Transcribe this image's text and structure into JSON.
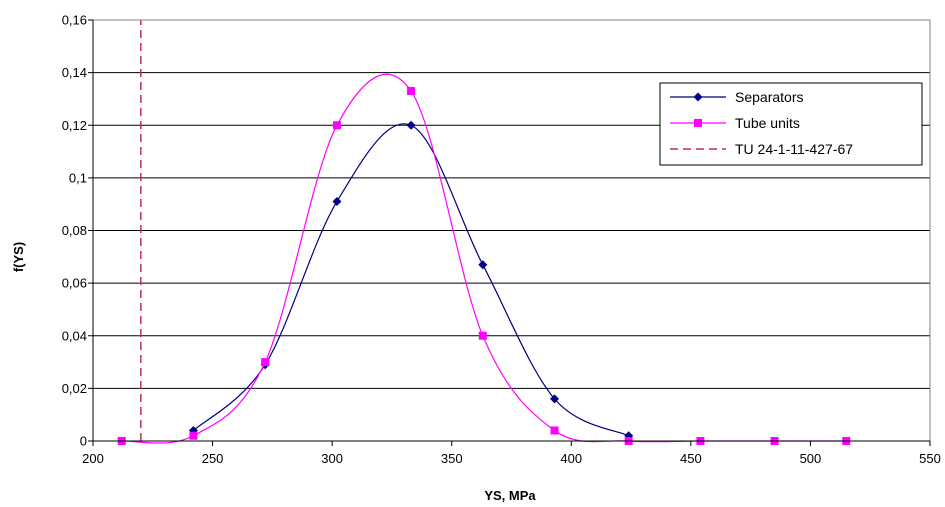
{
  "chart_data": {
    "type": "line",
    "title": "",
    "xlabel": "YS, MPa",
    "ylabel": "f(YS)",
    "xlim": [
      200,
      550
    ],
    "ylim": [
      0,
      0.16
    ],
    "x_ticks": [
      200,
      250,
      300,
      350,
      400,
      450,
      500,
      550
    ],
    "x_tick_labels": [
      "200",
      "250",
      "300",
      "350",
      "400",
      "450",
      "500",
      "550"
    ],
    "y_ticks": [
      0,
      0.02,
      0.04,
      0.06,
      0.08,
      0.1,
      0.12,
      0.14,
      0.16
    ],
    "y_tick_labels": [
      "0",
      "0,02",
      "0,04",
      "0,06",
      "0,08",
      "0,1",
      "0,12",
      "0,14",
      "0,16"
    ],
    "grid": "horizontal",
    "legend_position": "top-right",
    "series": [
      {
        "name": "Separators",
        "color": "#000080",
        "marker": "diamond",
        "x": [
          242,
          272,
          302,
          333,
          363,
          393,
          424
        ],
        "y": [
          0.004,
          0.029,
          0.091,
          0.12,
          0.067,
          0.016,
          0.002
        ]
      },
      {
        "name": "Tube units",
        "color": "#ff00ff",
        "marker": "square",
        "x": [
          212,
          242,
          272,
          302,
          333,
          363,
          393,
          424,
          454,
          485,
          515
        ],
        "y": [
          0,
          0.002,
          0.03,
          0.12,
          0.133,
          0.04,
          0.004,
          0,
          0,
          0,
          0
        ]
      },
      {
        "name": "TU 24-1-11-427-67",
        "color": "#c0304a",
        "style": "dashed",
        "x": [
          220,
          220
        ],
        "y": [
          0,
          0.16
        ]
      }
    ]
  }
}
